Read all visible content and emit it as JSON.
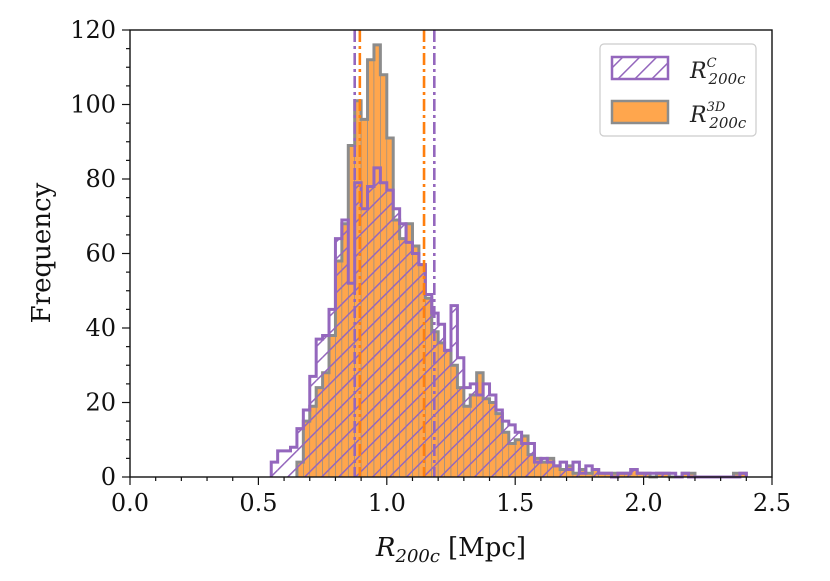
{
  "chart_data": {
    "type": "histogram",
    "x_label_main": "R",
    "x_label_sub": "200c",
    "x_label_unit": "[Mpc]",
    "ylabel": "Frequency",
    "xlim": [
      0.0,
      2.5
    ],
    "ylim": [
      0,
      120
    ],
    "x_ticks": [
      0.0,
      0.5,
      1.0,
      1.5,
      2.0,
      2.5
    ],
    "x_tick_labels": [
      "0.0",
      "0.5",
      "1.0",
      "1.5",
      "2.0",
      "2.5"
    ],
    "y_ticks": [
      0,
      20,
      40,
      60,
      80,
      100,
      120
    ],
    "y_tick_labels": [
      "0",
      "20",
      "40",
      "60",
      "80",
      "100",
      "120"
    ],
    "bin_width": 0.025,
    "legend_position": "top-right",
    "series": [
      {
        "name": "R_200c^3D",
        "label_base": "R",
        "label_sub": "200c",
        "label_sup": "3D",
        "style": "filled",
        "fill": "#ffa64d",
        "edge": "#8c8c8c",
        "bins": [
          [
            0.65,
            0.675,
            4
          ],
          [
            0.675,
            0.7,
            15
          ],
          [
            0.7,
            0.725,
            19
          ],
          [
            0.725,
            0.75,
            24
          ],
          [
            0.75,
            0.775,
            28
          ],
          [
            0.775,
            0.8,
            38
          ],
          [
            0.8,
            0.825,
            58
          ],
          [
            0.825,
            0.85,
            68
          ],
          [
            0.85,
            0.875,
            89
          ],
          [
            0.875,
            0.9,
            101
          ],
          [
            0.9,
            0.925,
            96
          ],
          [
            0.925,
            0.95,
            112
          ],
          [
            0.95,
            0.975,
            116
          ],
          [
            0.975,
            1.0,
            108
          ],
          [
            1.0,
            1.025,
            91
          ],
          [
            1.025,
            1.05,
            69
          ],
          [
            1.05,
            1.075,
            64
          ],
          [
            1.075,
            1.1,
            68
          ],
          [
            1.1,
            1.125,
            62
          ],
          [
            1.125,
            1.15,
            57
          ],
          [
            1.15,
            1.175,
            48
          ],
          [
            1.175,
            1.2,
            39
          ],
          [
            1.2,
            1.225,
            36
          ],
          [
            1.225,
            1.25,
            34
          ],
          [
            1.25,
            1.275,
            30
          ],
          [
            1.275,
            1.3,
            24
          ],
          [
            1.3,
            1.325,
            19
          ],
          [
            1.325,
            1.35,
            22
          ],
          [
            1.35,
            1.375,
            28
          ],
          [
            1.375,
            1.4,
            21
          ],
          [
            1.4,
            1.425,
            20
          ],
          [
            1.425,
            1.45,
            17
          ],
          [
            1.45,
            1.475,
            12
          ],
          [
            1.475,
            1.5,
            9
          ],
          [
            1.5,
            1.525,
            10
          ],
          [
            1.525,
            1.55,
            11
          ],
          [
            1.55,
            1.575,
            6
          ],
          [
            1.575,
            1.6,
            5
          ],
          [
            1.6,
            1.625,
            4
          ],
          [
            1.625,
            1.65,
            5
          ],
          [
            1.65,
            1.675,
            3
          ],
          [
            1.675,
            1.7,
            2
          ],
          [
            1.7,
            1.725,
            3
          ],
          [
            1.725,
            1.75,
            1
          ],
          [
            1.75,
            1.775,
            2
          ],
          [
            1.775,
            1.8,
            1
          ],
          [
            1.8,
            1.825,
            2
          ],
          [
            1.825,
            1.85,
            1
          ],
          [
            1.85,
            1.875,
            1
          ],
          [
            1.875,
            1.9,
            1
          ],
          [
            1.9,
            1.925,
            1
          ],
          [
            1.925,
            1.95,
            1
          ],
          [
            1.95,
            1.975,
            2
          ],
          [
            1.975,
            2.0,
            1
          ],
          [
            2.0,
            2.025,
            1
          ],
          [
            2.025,
            2.05,
            0
          ],
          [
            2.05,
            2.075,
            1
          ],
          [
            2.075,
            2.1,
            1
          ],
          [
            2.1,
            2.125,
            0
          ],
          [
            2.125,
            2.15,
            0
          ],
          [
            2.15,
            2.175,
            1
          ],
          [
            2.175,
            2.2,
            1
          ],
          [
            2.2,
            2.225,
            0
          ],
          [
            2.225,
            2.25,
            0
          ],
          [
            2.25,
            2.275,
            0
          ],
          [
            2.275,
            2.3,
            0
          ],
          [
            2.3,
            2.325,
            0
          ],
          [
            2.325,
            2.35,
            0
          ],
          [
            2.35,
            2.375,
            1
          ],
          [
            2.375,
            2.4,
            1
          ]
        ]
      },
      {
        "name": "R_200c^C",
        "label_base": "R",
        "label_sub": "200c",
        "label_sup": "C",
        "style": "hatched",
        "hatch_color": "#9467bd",
        "edge": "#9467bd",
        "bins": [
          [
            0.55,
            0.575,
            4
          ],
          [
            0.575,
            0.6,
            7
          ],
          [
            0.6,
            0.625,
            7
          ],
          [
            0.625,
            0.65,
            8
          ],
          [
            0.65,
            0.675,
            13
          ],
          [
            0.675,
            0.7,
            18
          ],
          [
            0.7,
            0.725,
            27
          ],
          [
            0.725,
            0.75,
            37
          ],
          [
            0.75,
            0.775,
            38
          ],
          [
            0.775,
            0.8,
            45
          ],
          [
            0.8,
            0.825,
            64
          ],
          [
            0.825,
            0.85,
            69
          ],
          [
            0.85,
            0.875,
            52
          ],
          [
            0.875,
            0.9,
            79
          ],
          [
            0.9,
            0.925,
            72
          ],
          [
            0.925,
            0.95,
            78
          ],
          [
            0.95,
            0.975,
            83
          ],
          [
            0.975,
            1.0,
            79
          ],
          [
            1.0,
            1.025,
            77
          ],
          [
            1.025,
            1.05,
            72
          ],
          [
            1.05,
            1.075,
            68
          ],
          [
            1.075,
            1.1,
            63
          ],
          [
            1.1,
            1.125,
            60
          ],
          [
            1.125,
            1.15,
            57
          ],
          [
            1.15,
            1.175,
            49
          ],
          [
            1.175,
            1.2,
            44
          ],
          [
            1.2,
            1.225,
            41
          ],
          [
            1.225,
            1.25,
            34
          ],
          [
            1.25,
            1.275,
            46
          ],
          [
            1.275,
            1.3,
            32
          ],
          [
            1.3,
            1.325,
            24
          ],
          [
            1.325,
            1.35,
            25
          ],
          [
            1.35,
            1.375,
            22
          ],
          [
            1.375,
            1.4,
            25
          ],
          [
            1.4,
            1.425,
            22
          ],
          [
            1.425,
            1.45,
            18
          ],
          [
            1.45,
            1.475,
            15
          ],
          [
            1.475,
            1.5,
            14
          ],
          [
            1.5,
            1.525,
            12
          ],
          [
            1.525,
            1.55,
            9
          ],
          [
            1.55,
            1.575,
            9
          ],
          [
            1.575,
            1.6,
            4
          ],
          [
            1.6,
            1.625,
            5
          ],
          [
            1.625,
            1.65,
            4
          ],
          [
            1.65,
            1.675,
            3
          ],
          [
            1.675,
            1.7,
            4
          ],
          [
            1.7,
            1.725,
            2
          ],
          [
            1.725,
            1.75,
            4
          ],
          [
            1.75,
            1.775,
            1
          ],
          [
            1.775,
            1.8,
            3
          ],
          [
            1.8,
            1.825,
            2
          ],
          [
            1.825,
            1.85,
            1
          ],
          [
            1.85,
            1.875,
            1
          ],
          [
            1.875,
            1.9,
            0
          ],
          [
            1.9,
            1.925,
            1
          ],
          [
            1.925,
            1.95,
            1
          ],
          [
            1.95,
            1.975,
            2
          ],
          [
            1.975,
            2.0,
            1
          ],
          [
            2.0,
            2.025,
            1
          ],
          [
            2.025,
            2.05,
            1
          ],
          [
            2.05,
            2.075,
            1
          ],
          [
            2.075,
            2.1,
            1
          ],
          [
            2.1,
            2.125,
            1
          ],
          [
            2.125,
            2.15,
            0
          ],
          [
            2.15,
            2.175,
            1
          ],
          [
            2.175,
            2.2,
            0
          ],
          [
            2.2,
            2.225,
            0
          ],
          [
            2.225,
            2.25,
            0
          ],
          [
            2.25,
            2.275,
            0
          ],
          [
            2.275,
            2.3,
            0
          ],
          [
            2.3,
            2.325,
            0
          ],
          [
            2.325,
            2.35,
            0
          ],
          [
            2.35,
            2.375,
            0
          ],
          [
            2.375,
            2.4,
            1
          ]
        ]
      }
    ],
    "reference_lines": [
      {
        "x": 0.875,
        "color": "#9467bd",
        "style": "dashdot",
        "series": "R_200c^C"
      },
      {
        "x": 1.185,
        "color": "#9467bd",
        "style": "dashdot",
        "series": "R_200c^C"
      },
      {
        "x": 0.895,
        "color": "#ff7f0e",
        "style": "dashdot",
        "series": "R_200c^3D"
      },
      {
        "x": 1.145,
        "color": "#ff7f0e",
        "style": "dashdot",
        "series": "R_200c^3D"
      }
    ]
  }
}
